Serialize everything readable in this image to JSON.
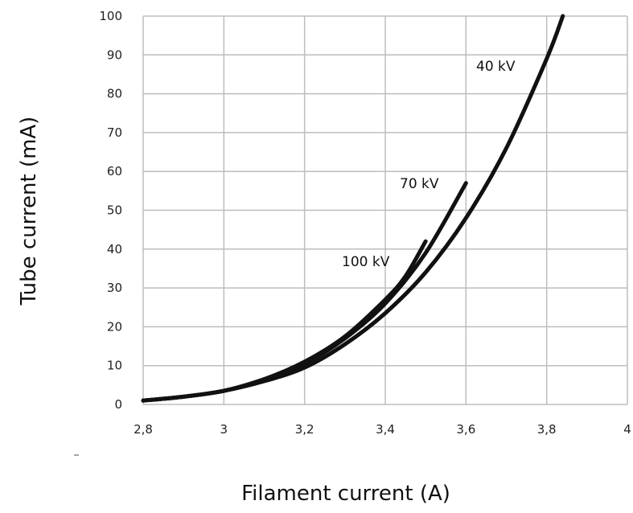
{
  "chart_data": {
    "type": "line",
    "xlabel": "Filament current (A)",
    "ylabel": "Tube current (mA)",
    "xlim": [
      2.8,
      4.0
    ],
    "ylim": [
      0,
      100
    ],
    "x_ticks": [
      "2,8",
      "3",
      "3,2",
      "3,4",
      "3,6",
      "3,8",
      "4"
    ],
    "y_ticks": [
      "0",
      "10",
      "20",
      "30",
      "40",
      "50",
      "60",
      "70",
      "80",
      "90",
      "100"
    ],
    "grid": true,
    "series": [
      {
        "name": "40 kV",
        "x": [
          2.8,
          2.9,
          3.0,
          3.1,
          3.2,
          3.3,
          3.4,
          3.5,
          3.6,
          3.7,
          3.8,
          3.84
        ],
        "y": [
          1.0,
          2.0,
          3.5,
          6.0,
          9.5,
          15.5,
          23.5,
          34.0,
          48.0,
          66.0,
          89.0,
          100.0
        ]
      },
      {
        "name": "70 kV",
        "x": [
          2.8,
          2.9,
          3.0,
          3.1,
          3.2,
          3.3,
          3.4,
          3.5,
          3.6
        ],
        "y": [
          1.0,
          2.0,
          3.5,
          6.5,
          10.5,
          17.0,
          26.0,
          39.0,
          57.0
        ]
      },
      {
        "name": "100 kV",
        "x": [
          2.8,
          2.9,
          3.0,
          3.1,
          3.2,
          3.3,
          3.4,
          3.45,
          3.5
        ],
        "y": [
          1.0,
          2.0,
          3.5,
          6.5,
          11.0,
          17.5,
          27.0,
          33.0,
          42.0
        ]
      }
    ]
  }
}
